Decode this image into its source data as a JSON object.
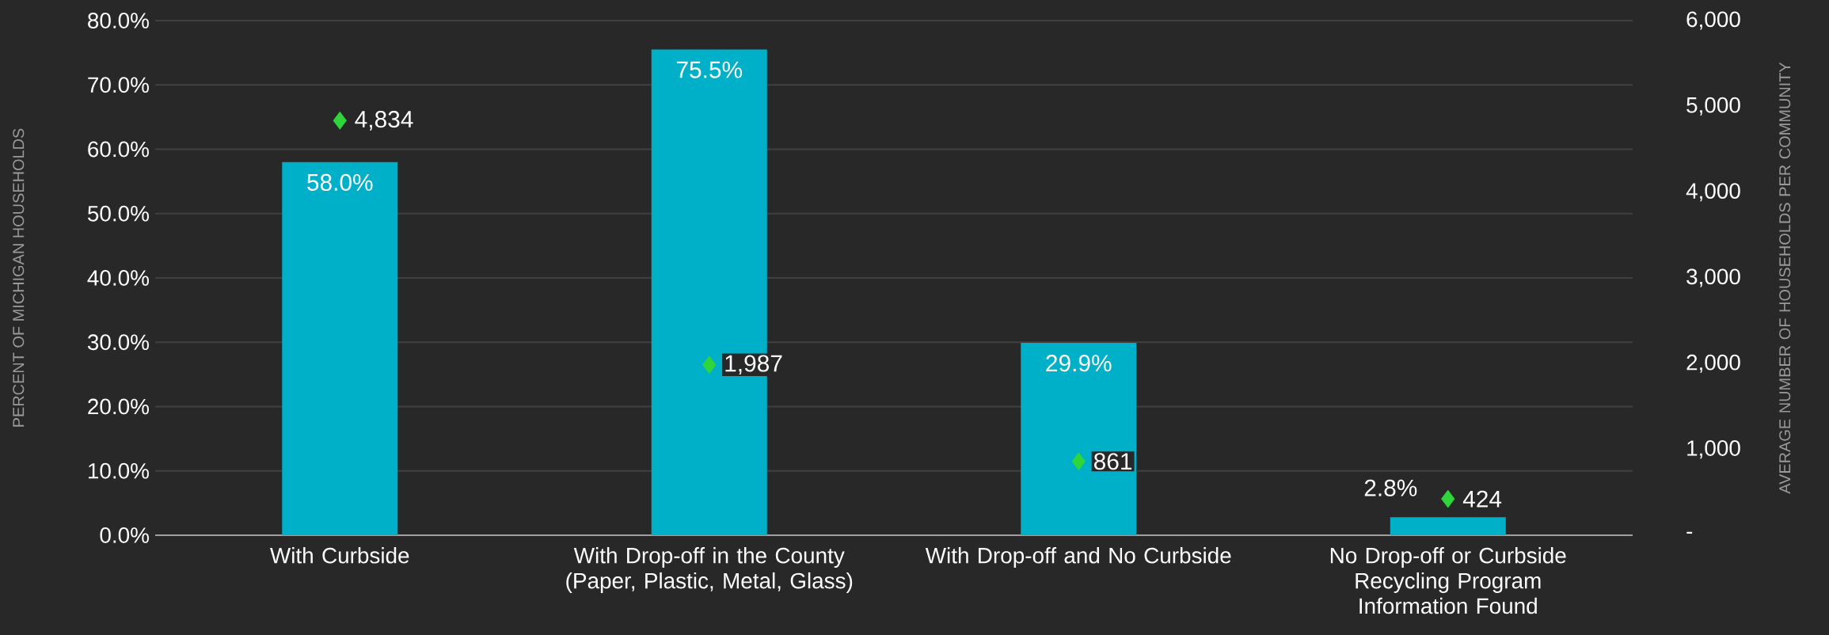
{
  "chart_data": {
    "type": "bar",
    "categories": [
      "With Curbside",
      "With Drop-off in the County (Paper, Plastic, Metal, Glass)",
      "With Drop-off and No Curbside",
      "No Drop-off or Curbside Recycling Program Information Found"
    ],
    "ylabel": "PERCENT OF MICHIGAN HOUSEHOLDS",
    "y2label": "AVERAGE NUMBER OF HOUSEHOLDS PER COMMUNITY",
    "ylim": [
      0,
      80
    ],
    "yticks": [
      {
        "value": 0,
        "label": "0.0%"
      },
      {
        "value": 10,
        "label": "10.0%"
      },
      {
        "value": 20,
        "label": "20.0%"
      },
      {
        "value": 30,
        "label": "30.0%"
      },
      {
        "value": 40,
        "label": "40.0%"
      },
      {
        "value": 50,
        "label": "50.0%"
      },
      {
        "value": 60,
        "label": "60.0%"
      },
      {
        "value": 70,
        "label": "70.0%"
      },
      {
        "value": 80,
        "label": "80.0%"
      }
    ],
    "y2lim": [
      0,
      6000
    ],
    "y2ticks": [
      {
        "value": 0,
        "label": "-"
      },
      {
        "value": 1000,
        "label": "1,000"
      },
      {
        "value": 2000,
        "label": "2,000"
      },
      {
        "value": 3000,
        "label": "3,000"
      },
      {
        "value": 4000,
        "label": "4,000"
      },
      {
        "value": 5000,
        "label": "5,000"
      },
      {
        "value": 6000,
        "label": "6,000"
      }
    ],
    "grid": "y",
    "series": [
      {
        "type": "bar",
        "color": "#00b0c8",
        "values": [
          58.0,
          75.5,
          29.9,
          2.8
        ],
        "value_labels": [
          "58.0%",
          "75.5%",
          "29.9%",
          "2.8%"
        ]
      },
      {
        "type": "scatter",
        "axis": "y2",
        "color": "#2ed63c",
        "marker": "diamond",
        "values": [
          4834,
          1987,
          861,
          424
        ],
        "value_labels": [
          "4,834",
          "1,987",
          "861",
          "424"
        ]
      }
    ]
  }
}
